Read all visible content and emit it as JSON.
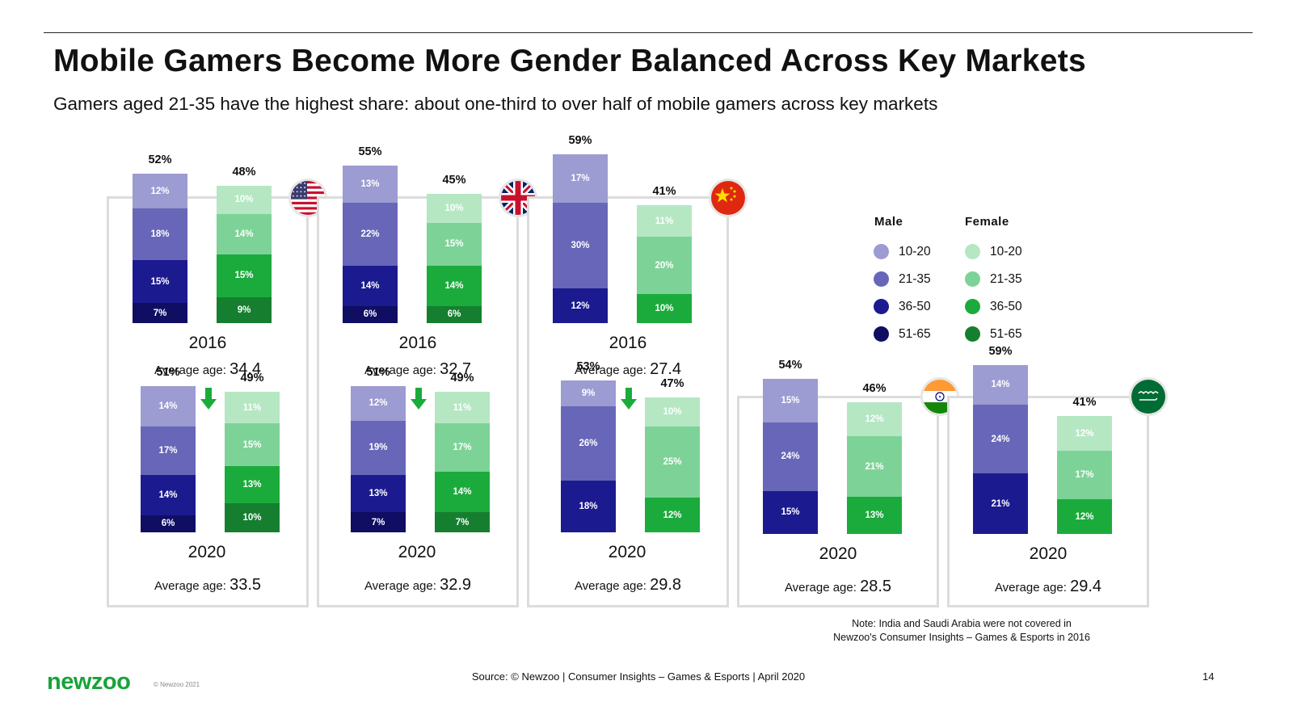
{
  "title": "Mobile Gamers Become More Gender Balanced Across Key Markets",
  "subtitle": "Gamers aged 21-35 have the highest share: about one-third to over half of mobile gamers across key markets",
  "avg_label": "Average age:",
  "legend": {
    "male_title": "Male",
    "female_title": "Female",
    "male": [
      {
        "label": "10-20",
        "color": "#9c9bd2"
      },
      {
        "label": "21-35",
        "color": "#6766b8"
      },
      {
        "label": "36-50",
        "color": "#1b1a8f"
      },
      {
        "label": "51-65",
        "color": "#0f0e63"
      }
    ],
    "female": [
      {
        "label": "10-20",
        "color": "#b5e7c3"
      },
      {
        "label": "21-35",
        "color": "#7dd397"
      },
      {
        "label": "36-50",
        "color": "#1bab3c"
      },
      {
        "label": "51-65",
        "color": "#157f2f"
      }
    ]
  },
  "note": [
    "Note: India and Saudi Arabia were not covered in",
    "Newzoo's Consumer Insights – Games & Esports in 2016"
  ],
  "source": "Source: © Newzoo | Consumer Insights – Games & Esports | April 2020",
  "page_number": "14",
  "logo": "newzoo",
  "copyright": "© Newzoo 2021",
  "chart_data": {
    "type": "bar",
    "stacked": true,
    "unit": "% of mobile gamers",
    "stack_order_bottom_to_top": [
      "51-65",
      "36-50",
      "21-35",
      "10-20"
    ],
    "markets": [
      {
        "country": "United States",
        "flag": "us-flag",
        "years": [
          {
            "year": "2016",
            "avg_age": "34.4",
            "male": {
              "total": "52%",
              "segments": [
                {
                  "age": "10-20",
                  "label": "12%",
                  "value": 12
                },
                {
                  "age": "21-35",
                  "label": "18%",
                  "value": 18
                },
                {
                  "age": "36-50",
                  "label": "15%",
                  "value": 15
                },
                {
                  "age": "51-65",
                  "label": "7%",
                  "value": 7
                }
              ]
            },
            "female": {
              "total": "48%",
              "segments": [
                {
                  "age": "10-20",
                  "label": "10%",
                  "value": 10
                },
                {
                  "age": "21-35",
                  "label": "14%",
                  "value": 14
                },
                {
                  "age": "36-50",
                  "label": "15%",
                  "value": 15
                },
                {
                  "age": "51-65",
                  "label": "9%",
                  "value": 9
                }
              ]
            }
          },
          {
            "year": "2020",
            "avg_age": "33.5",
            "male": {
              "total": "51%",
              "segments": [
                {
                  "age": "10-20",
                  "label": "14%",
                  "value": 14
                },
                {
                  "age": "21-35",
                  "label": "17%",
                  "value": 17
                },
                {
                  "age": "36-50",
                  "label": "14%",
                  "value": 14
                },
                {
                  "age": "51-65",
                  "label": "6%",
                  "value": 6
                }
              ]
            },
            "female": {
              "total": "49%",
              "segments": [
                {
                  "age": "10-20",
                  "label": "11%",
                  "value": 11
                },
                {
                  "age": "21-35",
                  "label": "15%",
                  "value": 15
                },
                {
                  "age": "36-50",
                  "label": "13%",
                  "value": 13
                },
                {
                  "age": "51-65",
                  "label": "10%",
                  "value": 10
                }
              ]
            }
          }
        ]
      },
      {
        "country": "United Kingdom",
        "flag": "uk-flag",
        "years": [
          {
            "year": "2016",
            "avg_age": "32.7",
            "male": {
              "total": "55%",
              "segments": [
                {
                  "age": "10-20",
                  "label": "13%",
                  "value": 13
                },
                {
                  "age": "21-35",
                  "label": "22%",
                  "value": 22
                },
                {
                  "age": "36-50",
                  "label": "14%",
                  "value": 14
                },
                {
                  "age": "51-65",
                  "label": "6%",
                  "value": 6
                }
              ]
            },
            "female": {
              "total": "45%",
              "segments": [
                {
                  "age": "10-20",
                  "label": "10%",
                  "value": 10
                },
                {
                  "age": "21-35",
                  "label": "15%",
                  "value": 15
                },
                {
                  "age": "36-50",
                  "label": "14%",
                  "value": 14
                },
                {
                  "age": "51-65",
                  "label": "6%",
                  "value": 6
                }
              ]
            }
          },
          {
            "year": "2020",
            "avg_age": "32.9",
            "male": {
              "total": "51%",
              "segments": [
                {
                  "age": "10-20",
                  "label": "12%",
                  "value": 12
                },
                {
                  "age": "21-35",
                  "label": "19%",
                  "value": 19
                },
                {
                  "age": "36-50",
                  "label": "13%",
                  "value": 13
                },
                {
                  "age": "51-65",
                  "label": "7%",
                  "value": 7
                }
              ]
            },
            "female": {
              "total": "49%",
              "segments": [
                {
                  "age": "10-20",
                  "label": "11%",
                  "value": 11
                },
                {
                  "age": "21-35",
                  "label": "17%",
                  "value": 17
                },
                {
                  "age": "36-50",
                  "label": "14%",
                  "value": 14
                },
                {
                  "age": "51-65",
                  "label": "7%",
                  "value": 7
                }
              ]
            }
          }
        ]
      },
      {
        "country": "China",
        "flag": "china-flag",
        "years": [
          {
            "year": "2016",
            "avg_age": "27.4",
            "male": {
              "total": "59%",
              "segments": [
                {
                  "age": "10-20",
                  "label": "17%",
                  "value": 17
                },
                {
                  "age": "21-35",
                  "label": "30%",
                  "value": 30
                },
                {
                  "age": "36-50",
                  "label": "12%",
                  "value": 12
                }
              ]
            },
            "female": {
              "total": "41%",
              "segments": [
                {
                  "age": "10-20",
                  "label": "11%",
                  "value": 11
                },
                {
                  "age": "21-35",
                  "label": "20%",
                  "value": 20
                },
                {
                  "age": "36-50",
                  "label": "10%",
                  "value": 10
                }
              ]
            }
          },
          {
            "year": "2020",
            "avg_age": "29.8",
            "male": {
              "total": "53%",
              "segments": [
                {
                  "age": "10-20",
                  "label": "9%",
                  "value": 9
                },
                {
                  "age": "21-35",
                  "label": "26%",
                  "value": 26
                },
                {
                  "age": "36-50",
                  "label": "18%",
                  "value": 18
                }
              ]
            },
            "female": {
              "total": "47%",
              "segments": [
                {
                  "age": "10-20",
                  "label": "10%",
                  "value": 10
                },
                {
                  "age": "21-35",
                  "label": "25%",
                  "value": 25
                },
                {
                  "age": "36-50",
                  "label": "12%",
                  "value": 12
                }
              ]
            }
          }
        ]
      },
      {
        "country": "India",
        "flag": "india-flag",
        "years": [
          {
            "year": "2020",
            "avg_age": "28.5",
            "male": {
              "total": "54%",
              "segments": [
                {
                  "age": "10-20",
                  "label": "15%",
                  "value": 15
                },
                {
                  "age": "21-35",
                  "label": "24%",
                  "value": 24
                },
                {
                  "age": "36-50",
                  "label": "15%",
                  "value": 15
                }
              ]
            },
            "female": {
              "total": "46%",
              "segments": [
                {
                  "age": "10-20",
                  "label": "12%",
                  "value": 12
                },
                {
                  "age": "21-35",
                  "label": "21%",
                  "value": 21
                },
                {
                  "age": "36-50",
                  "label": "13%",
                  "value": 13
                }
              ]
            }
          }
        ]
      },
      {
        "country": "Saudi Arabia",
        "flag": "saudi-flag",
        "years": [
          {
            "year": "2020",
            "avg_age": "29.4",
            "male": {
              "total": "59%",
              "segments": [
                {
                  "age": "10-20",
                  "label": "14%",
                  "value": 14
                },
                {
                  "age": "21-35",
                  "label": "24%",
                  "value": 24
                },
                {
                  "age": "36-50",
                  "label": "21%",
                  "value": 21
                }
              ]
            },
            "female": {
              "total": "41%",
              "segments": [
                {
                  "age": "10-20",
                  "label": "12%",
                  "value": 12
                },
                {
                  "age": "21-35",
                  "label": "17%",
                  "value": 17
                },
                {
                  "age": "36-50",
                  "label": "12%",
                  "value": 12
                }
              ]
            }
          }
        ]
      }
    ]
  }
}
